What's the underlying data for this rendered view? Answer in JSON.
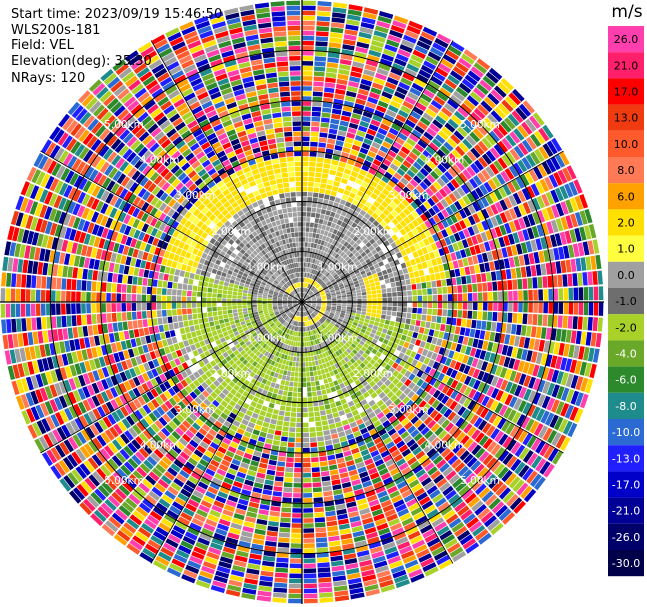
{
  "header": {
    "start_time": "Start time: 2023/09/19 15:46:50",
    "instrument": "WLS200s-181",
    "field": "Field: VEL",
    "elevation": "Elevation(deg): 35.30",
    "nrays": "NRays: 120"
  },
  "chart_data": {
    "type": "heatmap",
    "subtype": "polar-ppi",
    "field": "VEL",
    "units": "m/s",
    "n_rays": 120,
    "max_range_km": 6.0,
    "range_rings_km": [
      1.0,
      2.0,
      3.0,
      4.0,
      5.0
    ],
    "ring_labels": [
      "1.00km",
      "2.00km",
      "3.00km",
      "4.00km",
      "5.00km"
    ],
    "spoke_angles_deg": [
      0,
      30,
      60,
      90,
      120,
      150,
      180,
      210,
      240,
      270,
      300,
      330
    ],
    "colorbar": {
      "title": "m/s",
      "tick_labels": [
        "26.0",
        "21.0",
        "17.0",
        "13.0",
        "10.0",
        "8.0",
        "6.0",
        "2.0",
        "1.0",
        "0.0",
        "-1.0",
        "-2.0",
        "-4.0",
        "-6.0",
        "-8.0",
        "-10.0",
        "-13.0",
        "-17.0",
        "-21.0",
        "-26.0",
        "-30.0"
      ],
      "colors": [
        "#ff3fae",
        "#ff1f6a",
        "#ff0000",
        "#f03a10",
        "#ff5a2c",
        "#ff7a55",
        "#ffa200",
        "#ffe000",
        "#ffff40",
        "#a0a0a0",
        "#6e6e6e",
        "#a8d22a",
        "#6aa82a",
        "#2c8a2c",
        "#1e8c8c",
        "#2a6ad2",
        "#2020ff",
        "#0000c8",
        "#000096",
        "#00006a",
        "#00004a"
      ]
    },
    "regions": [
      {
        "range_km": [
          0.0,
          1.0
        ],
        "value": "-1.0 to 1.0",
        "note": "near-zero gray core with a yellow ring"
      },
      {
        "range_km": [
          1.0,
          2.2
        ],
        "value": "-2.0 to 2.0",
        "note": "green (approaching) / gray mixture"
      },
      {
        "range_km": [
          2.2,
          2.8
        ],
        "value": "2.0",
        "note": "yellow band to the north"
      },
      {
        "range_km": [
          2.8,
          6.0
        ],
        "value": "noise",
        "note": "random multicolour noise"
      }
    ]
  }
}
